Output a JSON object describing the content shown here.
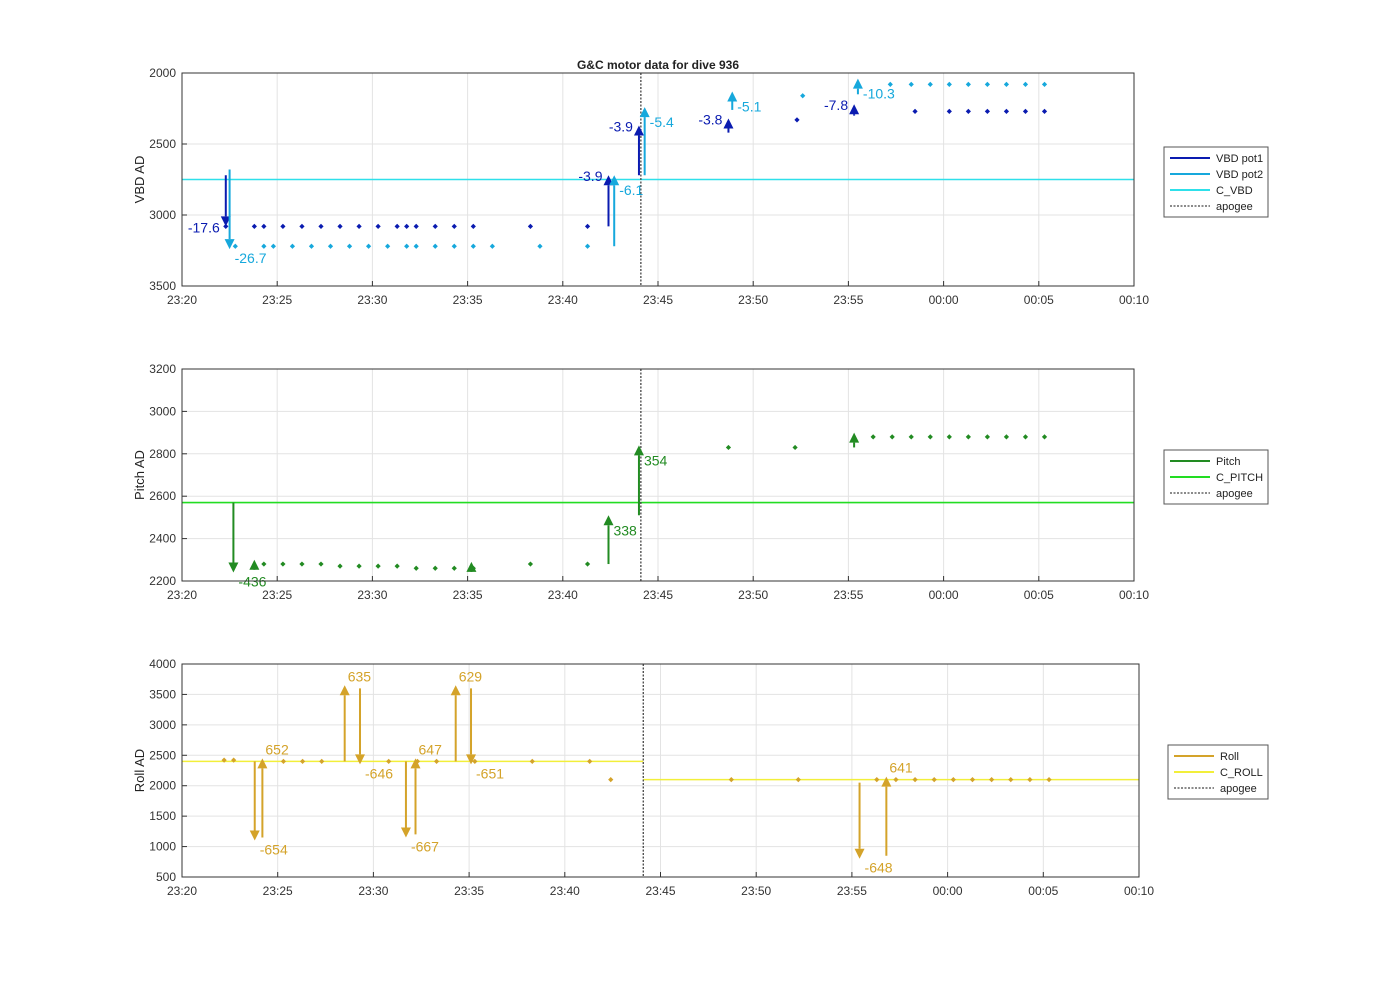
{
  "title": "G&C motor data for dive 936",
  "x_ticks": [
    "23:20",
    "23:25",
    "23:30",
    "23:35",
    "23:40",
    "23:45",
    "23:50",
    "23:55",
    "00:00",
    "00:05",
    "00:10"
  ],
  "colors": {
    "vbd_pot1": "#0a1bb0",
    "vbd_pot2": "#16a8dc",
    "c_vbd": "#2ee0ea",
    "pitch": "#228b22",
    "c_pitch": "#22dd22",
    "roll": "#d4a32a",
    "c_roll": "#f2ef3a",
    "apogee": "#444444",
    "grid": "#e3e3e3"
  },
  "chart_data": [
    {
      "type": "scatter",
      "ylabel": "VBD AD",
      "xlim": [
        0,
        50
      ],
      "ylim": [
        2000,
        3500
      ],
      "y_reversed": true,
      "y_ticks": [
        2000,
        2500,
        3000,
        3500
      ],
      "legend": [
        "VBD pot1",
        "VBD pot2",
        "C_VBD",
        "apogee"
      ],
      "legend_position": "outside-right",
      "grid": true,
      "apogee_x": 24.1,
      "reference_lines": [
        {
          "name": "C_VBD",
          "color_key": "c_vbd",
          "segments": [
            [
              0,
              50,
              2750
            ]
          ]
        }
      ],
      "series": [
        {
          "name": "VBD pot1",
          "color_key": "vbd_pot1",
          "x": [
            2.3,
            3.8,
            4.3,
            5.3,
            6.3,
            7.3,
            8.3,
            9.3,
            10.3,
            11.3,
            11.8,
            12.3,
            13.3,
            14.3,
            15.3,
            18.3,
            21.3,
            32.3,
            38.5,
            40.3,
            41.3,
            42.3,
            43.3,
            44.3,
            45.3
          ],
          "y": [
            3080,
            3080,
            3080,
            3080,
            3080,
            3080,
            3080,
            3080,
            3080,
            3080,
            3080,
            3080,
            3080,
            3080,
            3080,
            3080,
            3080,
            2330,
            2270,
            2270,
            2270,
            2270,
            2270,
            2270,
            2270
          ]
        },
        {
          "name": "VBD pot2",
          "color_key": "vbd_pot2",
          "x": [
            2.8,
            4.3,
            4.8,
            5.8,
            6.8,
            7.8,
            8.8,
            9.8,
            10.8,
            11.8,
            12.3,
            13.3,
            14.3,
            15.3,
            16.3,
            18.8,
            21.3,
            32.6,
            37.2,
            38.3,
            39.3,
            40.3,
            41.3,
            42.3,
            43.3,
            44.3,
            45.3
          ],
          "y": [
            3220,
            3220,
            3220,
            3220,
            3220,
            3220,
            3220,
            3220,
            3220,
            3220,
            3220,
            3220,
            3220,
            3220,
            3220,
            3220,
            3220,
            2160,
            2080,
            2080,
            2080,
            2080,
            2080,
            2080,
            2080,
            2080,
            2080
          ]
        }
      ],
      "arrows": [
        {
          "series": "VBD pot1",
          "x": 2.3,
          "y_from": 2720,
          "y_to": 3080,
          "label": "-17.6",
          "label_pos": "left"
        },
        {
          "series": "VBD pot2",
          "x": 2.5,
          "y_from": 2680,
          "y_to": 3240,
          "label": "-26.7",
          "label_pos": "right-below"
        },
        {
          "series": "VBD pot1",
          "x": 22.4,
          "y_from": 3080,
          "y_to": 2720,
          "label": "-3.9",
          "label_pos": "left"
        },
        {
          "series": "VBD pot2",
          "x": 22.7,
          "y_from": 3220,
          "y_to": 2720,
          "label": "-6.1",
          "label_pos": "right-below"
        },
        {
          "series": "VBD pot1",
          "x": 24.0,
          "y_from": 2720,
          "y_to": 2370,
          "label": "-3.9",
          "label_pos": "left"
        },
        {
          "series": "VBD pot2",
          "x": 24.3,
          "y_from": 2720,
          "y_to": 2240,
          "label": "-5.4",
          "label_pos": "right-below"
        },
        {
          "series": "VBD pot1",
          "x": 28.7,
          "y_from": 2420,
          "y_to": 2320,
          "label": "-3.8",
          "label_pos": "left"
        },
        {
          "series": "VBD pot2",
          "x": 28.9,
          "y_from": 2260,
          "y_to": 2130,
          "label": "-5.1",
          "label_pos": "right-below"
        },
        {
          "series": "VBD pot1",
          "x": 35.3,
          "y_from": 2300,
          "y_to": 2220,
          "label": "-7.8",
          "label_pos": "left"
        },
        {
          "series": "VBD pot2",
          "x": 35.5,
          "y_from": 2150,
          "y_to": 2040,
          "label": "-10.3",
          "label_pos": "right-below"
        }
      ]
    },
    {
      "type": "scatter",
      "ylabel": "Pitch AD",
      "xlim": [
        0,
        50
      ],
      "ylim": [
        2200,
        3200
      ],
      "y_reversed": false,
      "y_ticks": [
        2200,
        2400,
        2600,
        2800,
        3000,
        3200
      ],
      "legend": [
        "Pitch",
        "C_PITCH",
        "apogee"
      ],
      "legend_position": "outside-right",
      "grid": true,
      "apogee_x": 24.1,
      "reference_lines": [
        {
          "name": "C_PITCH",
          "color_key": "c_pitch",
          "segments": [
            [
              0,
              50,
              2570
            ]
          ]
        }
      ],
      "series": [
        {
          "name": "Pitch",
          "color_key": "pitch",
          "x": [
            4.3,
            5.3,
            6.3,
            7.3,
            8.3,
            9.3,
            10.3,
            11.3,
            12.3,
            13.3,
            14.3,
            15.3,
            18.3,
            21.3,
            28.7,
            32.2,
            36.3,
            37.3,
            38.3,
            39.3,
            40.3,
            41.3,
            42.3,
            43.3,
            44.3,
            45.3
          ],
          "y": [
            2280,
            2280,
            2280,
            2280,
            2270,
            2270,
            2270,
            2270,
            2260,
            2260,
            2260,
            2260,
            2280,
            2280,
            2830,
            2830,
            2880,
            2880,
            2880,
            2880,
            2880,
            2880,
            2880,
            2880,
            2880,
            2880
          ]
        }
      ],
      "arrows": [
        {
          "series": "Pitch",
          "x": 2.7,
          "y_from": 2570,
          "y_to": 2240,
          "label": "-436",
          "label_pos": "right-below"
        },
        {
          "series": "Pitch",
          "x": 3.8,
          "y_from": 2270,
          "y_to": 2300,
          "label": "",
          "label_pos": "right"
        },
        {
          "series": "Pitch",
          "x": 15.2,
          "y_from": 2260,
          "y_to": 2290,
          "label": "",
          "label_pos": "right"
        },
        {
          "series": "Pitch",
          "x": 22.4,
          "y_from": 2280,
          "y_to": 2510,
          "label": "338",
          "label_pos": "right-below"
        },
        {
          "series": "Pitch",
          "x": 24.0,
          "y_from": 2510,
          "y_to": 2840,
          "label": "354",
          "label_pos": "right-below"
        },
        {
          "series": "Pitch",
          "x": 35.3,
          "y_from": 2830,
          "y_to": 2900,
          "label": "",
          "label_pos": "right"
        }
      ]
    },
    {
      "type": "scatter",
      "ylabel": "Roll AD",
      "xlim": [
        0,
        50
      ],
      "ylim": [
        500,
        4000
      ],
      "y_reversed": false,
      "y_ticks": [
        500,
        1000,
        1500,
        2000,
        2500,
        3000,
        3500,
        4000
      ],
      "legend": [
        "Roll",
        "C_ROLL",
        "apogee"
      ],
      "legend_position": "outside-right",
      "grid": true,
      "apogee_x": 24.1,
      "reference_lines": [
        {
          "name": "C_ROLL",
          "color_key": "c_roll",
          "segments": [
            [
              0,
              24.1,
              2400
            ],
            [
              24.1,
              50,
              2100
            ]
          ]
        }
      ],
      "series": [
        {
          "name": "Roll",
          "color_key": "roll",
          "x": [
            2.2,
            2.7,
            5.3,
            6.3,
            7.3,
            10.8,
            12.3,
            13.3,
            15.3,
            18.3,
            21.3,
            22.4,
            28.7,
            32.2,
            36.3,
            37.3,
            38.3,
            39.3,
            40.3,
            41.3,
            42.3,
            43.3,
            44.3,
            45.3
          ],
          "y": [
            2420,
            2420,
            2400,
            2400,
            2400,
            2400,
            2400,
            2400,
            2400,
            2400,
            2400,
            2100,
            2100,
            2100,
            2100,
            2100,
            2100,
            2100,
            2100,
            2100,
            2100,
            2100,
            2100,
            2100
          ]
        }
      ],
      "arrows": [
        {
          "series": "Roll",
          "x": 3.8,
          "y_from": 2400,
          "y_to": 1100,
          "label": "-654",
          "label_pos": "right-below"
        },
        {
          "series": "Roll",
          "x": 4.2,
          "y_from": 1150,
          "y_to": 2450,
          "label": "652",
          "label_pos": "right-above"
        },
        {
          "series": "Roll",
          "x": 8.5,
          "y_from": 2400,
          "y_to": 3650,
          "label": "635",
          "label_pos": "right-above"
        },
        {
          "series": "Roll",
          "x": 9.3,
          "y_from": 3600,
          "y_to": 2350,
          "label": "-646",
          "label_pos": "right-below"
        },
        {
          "series": "Roll",
          "x": 11.7,
          "y_from": 2400,
          "y_to": 1150,
          "label": "-667",
          "label_pos": "right-below"
        },
        {
          "series": "Roll",
          "x": 12.2,
          "y_from": 1200,
          "y_to": 2450,
          "label": "647",
          "label_pos": "right-above"
        },
        {
          "series": "Roll",
          "x": 14.3,
          "y_from": 2400,
          "y_to": 3650,
          "label": "629",
          "label_pos": "right-above"
        },
        {
          "series": "Roll",
          "x": 15.1,
          "y_from": 3600,
          "y_to": 2350,
          "label": "-651",
          "label_pos": "right-below"
        },
        {
          "series": "Roll",
          "x": 35.4,
          "y_from": 2050,
          "y_to": 800,
          "label": "-648",
          "label_pos": "right-below"
        },
        {
          "series": "Roll",
          "x": 36.8,
          "y_from": 850,
          "y_to": 2150,
          "label": "641",
          "label_pos": "right-above"
        }
      ]
    }
  ]
}
